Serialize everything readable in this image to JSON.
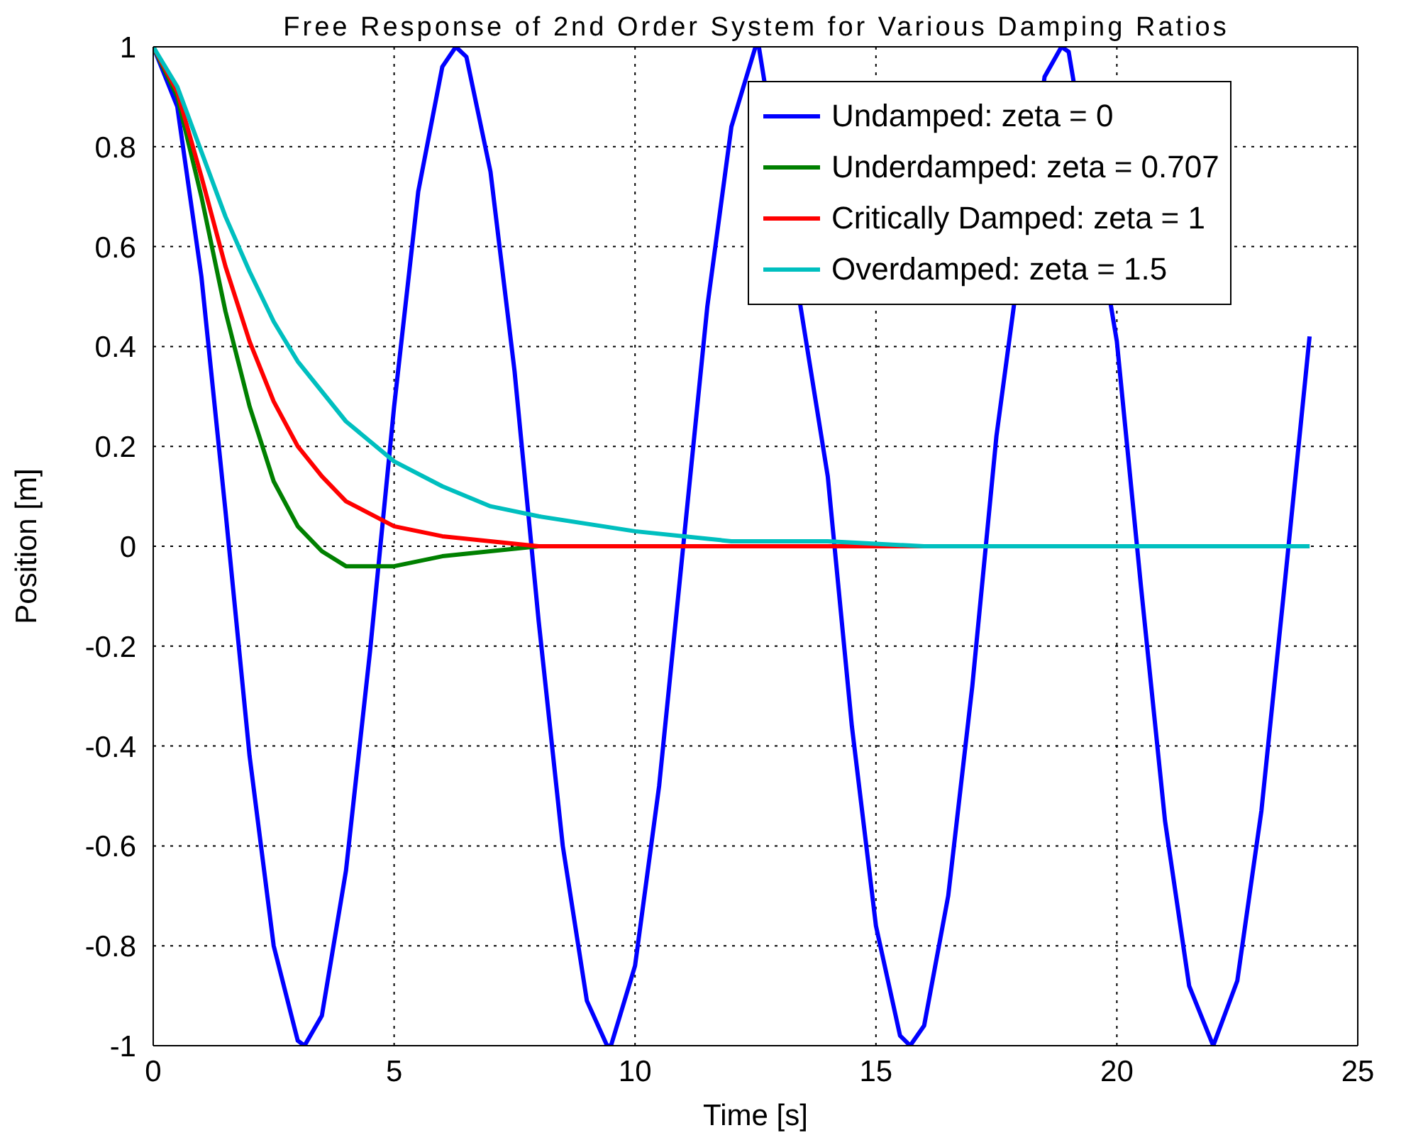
{
  "chart_data": {
    "type": "line",
    "title": "Free Response of 2nd Order System for Various Damping Ratios",
    "xlabel": "Time [s]",
    "ylabel": "Position [m]",
    "xlim": [
      0,
      25
    ],
    "xticks": [
      0,
      5,
      10,
      15,
      20,
      25
    ],
    "ylim": [
      -1,
      1
    ],
    "yticks": [
      -1,
      -0.8,
      -0.6,
      -0.4,
      -0.2,
      0,
      0.2,
      0.4,
      0.6,
      0.8,
      1
    ],
    "grid": true,
    "legend": "top right",
    "marker": "none",
    "line_style": "solid",
    "series": [
      {
        "name": "Undamped: zeta = 0",
        "color": "#0000ff",
        "x": [
          0,
          0.5,
          1,
          1.5,
          2,
          2.5,
          3,
          3.14,
          3.5,
          4,
          4.5,
          5,
          5.5,
          6,
          6.28,
          6.5,
          7,
          7.5,
          8,
          8.5,
          9,
          9.42,
          9.5,
          10,
          10.5,
          11,
          11.5,
          12,
          12.5,
          12.57,
          13,
          13.5,
          14,
          14.5,
          15,
          15.5,
          15.71,
          16,
          16.5,
          17,
          17.5,
          18,
          18.5,
          18.85,
          19,
          19.5,
          20,
          20.5,
          21,
          21.5,
          22,
          22.5,
          23,
          23.5,
          24
        ],
        "values": [
          1,
          0.88,
          0.54,
          0.07,
          -0.42,
          -0.8,
          -0.99,
          -1,
          -0.94,
          -0.65,
          -0.21,
          0.28,
          0.71,
          0.96,
          1,
          0.98,
          0.75,
          0.35,
          -0.15,
          -0.6,
          -0.91,
          -1,
          -1,
          -0.84,
          -0.48,
          0,
          0.48,
          0.84,
          1,
          1,
          null,
          null,
          0.14,
          -0.36,
          -0.76,
          -0.98,
          -1,
          -0.96,
          -0.7,
          -0.28,
          0.22,
          null,
          0.94,
          1,
          0.99,
          null,
          0.41,
          -0.08,
          -0.55,
          -0.88,
          -1,
          -0.87,
          -0.53,
          -0.06,
          0.42
        ]
      },
      {
        "name": "Underdamped: zeta = 0.707",
        "color": "#008000",
        "x": [
          0,
          0.5,
          1,
          1.5,
          2,
          2.5,
          3,
          3.5,
          4,
          4.5,
          5,
          6,
          7,
          8,
          10
        ],
        "values": [
          1,
          0.9,
          0.7,
          0.47,
          0.28,
          0.13,
          0.04,
          -0.01,
          -0.04,
          -0.04,
          -0.04,
          -0.02,
          -0.01,
          0,
          0
        ]
      },
      {
        "name": "Critically Damped: zeta = 1",
        "color": "#ff0000",
        "x": [
          0,
          0.5,
          1,
          1.5,
          2,
          2.5,
          3,
          3.5,
          4,
          5,
          6,
          7,
          8,
          10,
          12,
          16,
          20,
          24
        ],
        "values": [
          1,
          0.91,
          0.74,
          0.56,
          0.41,
          0.29,
          0.2,
          0.14,
          0.09,
          0.04,
          0.02,
          0.01,
          0,
          0,
          0,
          0,
          0,
          0
        ]
      },
      {
        "name": "Overdamped: zeta = 1.5",
        "color": "#00bfbf",
        "x": [
          0,
          0.5,
          1,
          1.5,
          2,
          2.5,
          3,
          4,
          5,
          6,
          7,
          8,
          10,
          12,
          14,
          16,
          20,
          24
        ],
        "values": [
          1,
          0.92,
          0.79,
          0.66,
          0.55,
          0.45,
          0.37,
          0.25,
          0.17,
          0.12,
          0.08,
          0.06,
          0.03,
          0.01,
          0.01,
          0,
          0,
          0
        ]
      }
    ]
  }
}
